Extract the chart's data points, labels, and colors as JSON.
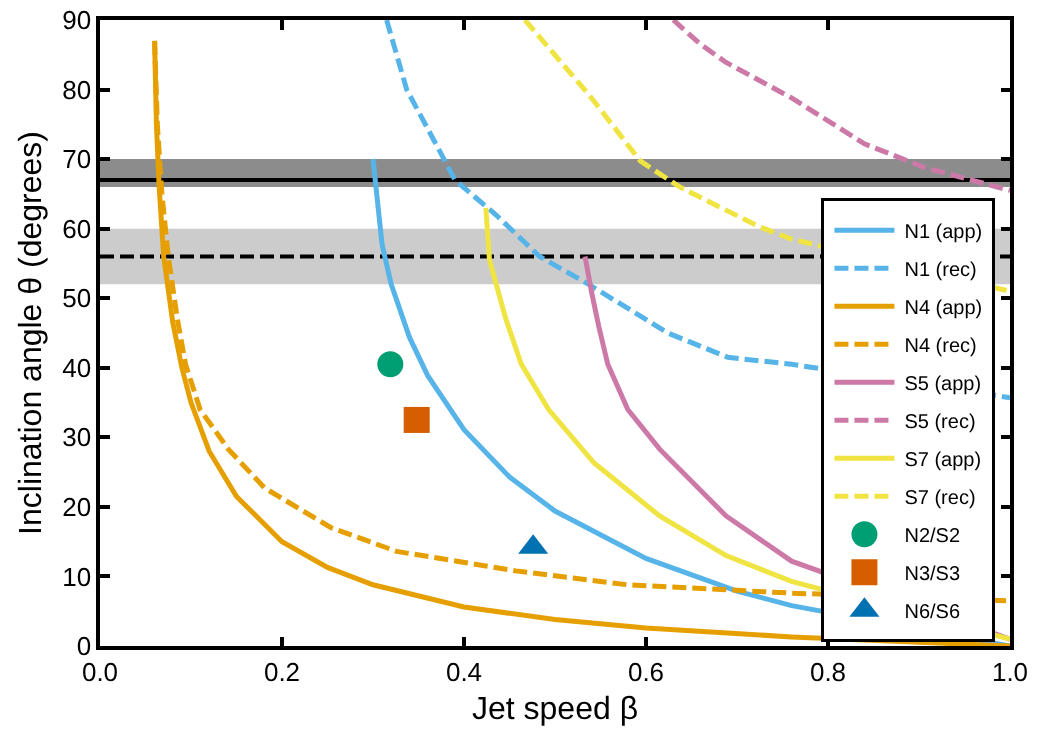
{
  "chart_data": {
    "type": "line",
    "xlabel": "Jet speed β",
    "ylabel": "Inclination angle θ (degrees)",
    "xlim": [
      0,
      1
    ],
    "xticks": [
      {
        "value": 0,
        "label": "0.0"
      },
      0.2,
      0.4,
      0.6,
      0.8,
      {
        "value": 1,
        "label": "1.0"
      }
    ],
    "ylim": [
      0,
      90
    ],
    "yticks": [
      0,
      10,
      20,
      30,
      40,
      50,
      60,
      70,
      80,
      90
    ],
    "grid": false,
    "legend": "bottom right",
    "marker": "none",
    "bands": [
      {
        "axis": "y",
        "from": 66,
        "to": 70,
        "color": "#8c8c8c"
      },
      {
        "axis": "y",
        "from": 52,
        "to": 60,
        "color": "#cccccc"
      }
    ],
    "ref_lines": [
      {
        "axis": "y",
        "value": 67,
        "color": "#000000",
        "line_style": "solid"
      },
      {
        "axis": "y",
        "value": 56,
        "color": "#000000",
        "line_style": "dashed"
      }
    ],
    "series": [
      {
        "name": "N1 (app)",
        "color": "#56b4e9",
        "line_style": "solid",
        "x": [
          0.3,
          0.31,
          0.32,
          0.34,
          0.36,
          0.4,
          0.45,
          0.5,
          0.6,
          0.7,
          0.76,
          1.0
        ],
        "values": [
          70,
          57.7,
          52,
          44.4,
          38.9,
          31.1,
          24.3,
          19.4,
          12.6,
          7.9,
          5.8,
          0
        ]
      },
      {
        "name": "N1 (rec)",
        "color": "#56b4e9",
        "line_style": "dashed",
        "x": [
          0.315,
          0.337,
          0.378,
          0.39,
          0.435,
          0.483,
          0.537,
          0.624,
          0.69,
          0.76,
          1.0
        ],
        "values": [
          90,
          80,
          70,
          67,
          62,
          56,
          52,
          45,
          41.5,
          40.5,
          35.7
        ]
      },
      {
        "name": "N4 (app)",
        "color": "#e69f00",
        "line_style": "solid",
        "x": [
          0.06,
          0.062,
          0.065,
          0.07,
          0.08,
          0.09,
          0.1,
          0.12,
          0.15,
          0.2,
          0.25,
          0.3,
          0.4,
          0.5,
          0.6,
          0.76,
          1.0
        ],
        "values": [
          87,
          75,
          66,
          56,
          46.5,
          40,
          35,
          28,
          21.5,
          15,
          11.3,
          8.8,
          5.6,
          3.8,
          2.6,
          1.3,
          0
        ]
      },
      {
        "name": "N4 (rec)",
        "color": "#e69f00",
        "line_style": "dashed",
        "x": [
          0.06,
          0.063,
          0.068,
          0.075,
          0.085,
          0.094,
          0.11,
          0.141,
          0.181,
          0.254,
          0.326,
          0.457,
          0.58,
          0.76,
          1.0
        ],
        "values": [
          87,
          75,
          65,
          56,
          47,
          40.5,
          34,
          28.3,
          22.7,
          17,
          13.6,
          10.8,
          8.8,
          7.6,
          6.5
        ]
      },
      {
        "name": "S5 (app)",
        "color": "#cc79a7",
        "line_style": "solid",
        "x": [
          0.533,
          0.54,
          0.548,
          0.558,
          0.58,
          0.615,
          0.688,
          0.76,
          1.0
        ],
        "values": [
          56,
          51,
          46,
          40.5,
          34,
          28.3,
          18.7,
          12.2,
          1
        ]
      },
      {
        "name": "S5 (rec)",
        "color": "#cc79a7",
        "line_style": "dashed",
        "x": [
          0.63,
          0.66,
          0.688,
          0.76,
          0.84,
          0.906,
          1.0
        ],
        "values": [
          90,
          86.5,
          83.9,
          78.8,
          72.2,
          68.8,
          65.5
        ]
      },
      {
        "name": "S7 (app)",
        "color": "#f0e442",
        "line_style": "solid",
        "x": [
          0.424,
          0.428,
          0.446,
          0.463,
          0.493,
          0.543,
          0.615,
          0.688,
          0.76,
          1.0
        ],
        "values": [
          63,
          55.5,
          47,
          40.5,
          34,
          26.3,
          18.7,
          13,
          9.3,
          1
        ]
      },
      {
        "name": "S7 (rec)",
        "color": "#f0e442",
        "line_style": "dashed",
        "x": [
          0.467,
          0.537,
          0.594,
          0.637,
          0.724,
          0.76,
          1.0
        ],
        "values": [
          90,
          79.3,
          69.7,
          66,
          60.3,
          58.5,
          51
        ]
      },
      {
        "name": "N2/S2",
        "type": "scatter",
        "marker": "circle",
        "color": "#009e73",
        "x": [
          0.319
        ],
        "values": [
          40.5
        ],
        "errors": [
          1.5
        ],
        "xerrors": [
          0.012
        ]
      },
      {
        "name": "N3/S3",
        "type": "scatter",
        "marker": "square",
        "color": "#d55e00",
        "x": [
          0.348
        ],
        "values": [
          32.5
        ]
      },
      {
        "name": "N6/S6",
        "type": "scatter",
        "marker": "triangle",
        "color": "#0072b2",
        "x": [
          0.476
        ],
        "values": [
          14.2
        ]
      }
    ]
  }
}
